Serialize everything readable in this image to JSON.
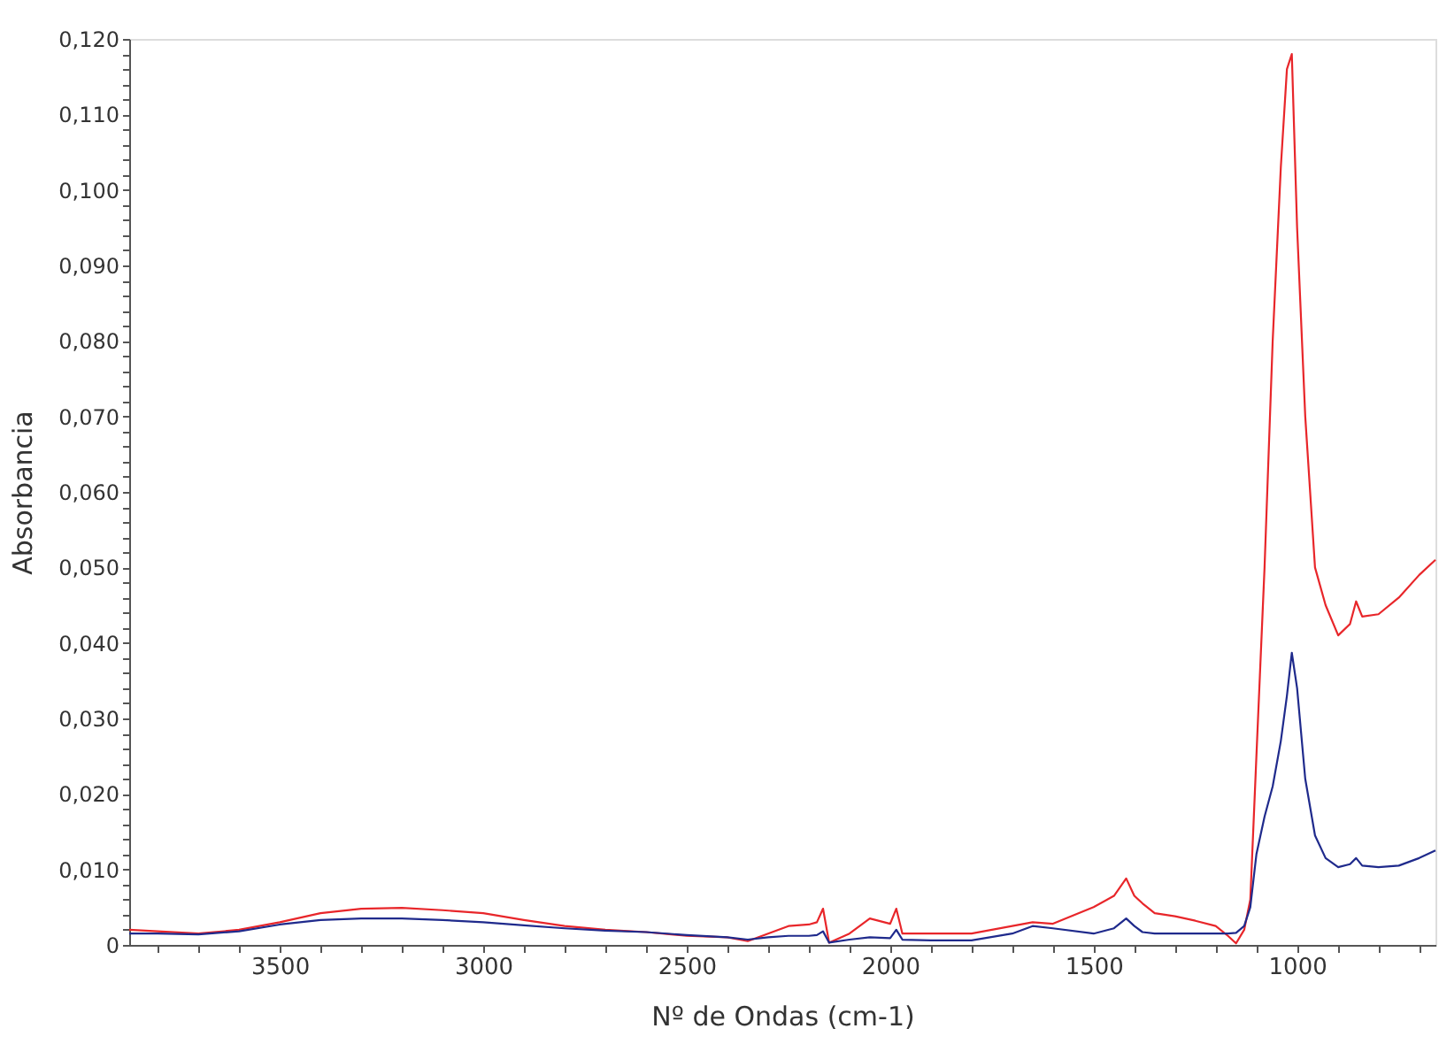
{
  "chart_data": {
    "type": "line",
    "xlabel": "Nº de Ondas (cm-1)",
    "ylabel": "Absorbancia",
    "xlim": [
      3870,
      660
    ],
    "ylim": [
      0,
      0.12
    ],
    "xticks": [
      {
        "value": 3800,
        "label": null
      },
      {
        "value": 3700,
        "label": null
      },
      {
        "value": 3600,
        "label": null
      },
      3500,
      {
        "value": 3400,
        "label": null
      },
      {
        "value": 3300,
        "label": null
      },
      {
        "value": 3200,
        "label": null
      },
      {
        "value": 3100,
        "label": null
      },
      3000,
      {
        "value": 2900,
        "label": null
      },
      {
        "value": 2800,
        "label": null
      },
      {
        "value": 2700,
        "label": null
      },
      {
        "value": 2600,
        "label": null
      },
      2500,
      {
        "value": 2400,
        "label": null
      },
      {
        "value": 2300,
        "label": null
      },
      {
        "value": 2200,
        "label": null
      },
      {
        "value": 2100,
        "label": null
      },
      2000,
      {
        "value": 1900,
        "label": null
      },
      {
        "value": 1800,
        "label": null
      },
      {
        "value": 1700,
        "label": null
      },
      {
        "value": 1600,
        "label": null
      },
      1500,
      {
        "value": 1400,
        "label": null
      },
      {
        "value": 1300,
        "label": null
      },
      {
        "value": 1200,
        "label": null
      },
      {
        "value": 1100,
        "label": null
      },
      1000,
      {
        "value": 900,
        "label": null
      },
      {
        "value": 800,
        "label": null
      },
      {
        "value": 700,
        "label": null
      }
    ],
    "yticks": [
      0,
      {
        "value": 0.002,
        "label": null
      },
      {
        "value": 0.004,
        "label": null
      },
      {
        "value": 0.006,
        "label": null
      },
      {
        "value": 0.008,
        "label": null
      },
      {
        "value": 0.01,
        "label": "0,010"
      },
      {
        "value": 0.012,
        "label": null
      },
      {
        "value": 0.014,
        "label": null
      },
      {
        "value": 0.016,
        "label": null
      },
      {
        "value": 0.018,
        "label": null
      },
      {
        "value": 0.02,
        "label": "0,020"
      },
      {
        "value": 0.022,
        "label": null
      },
      {
        "value": 0.024,
        "label": null
      },
      {
        "value": 0.026,
        "label": null
      },
      {
        "value": 0.028,
        "label": null
      },
      {
        "value": 0.03,
        "label": "0,030"
      },
      {
        "value": 0.032,
        "label": null
      },
      {
        "value": 0.034,
        "label": null
      },
      {
        "value": 0.036,
        "label": null
      },
      {
        "value": 0.038,
        "label": null
      },
      {
        "value": 0.04,
        "label": "0,040"
      },
      {
        "value": 0.042,
        "label": null
      },
      {
        "value": 0.044,
        "label": null
      },
      {
        "value": 0.046,
        "label": null
      },
      {
        "value": 0.048,
        "label": null
      },
      {
        "value": 0.05,
        "label": "0,050"
      },
      {
        "value": 0.052,
        "label": null
      },
      {
        "value": 0.054,
        "label": null
      },
      {
        "value": 0.056,
        "label": null
      },
      {
        "value": 0.058,
        "label": null
      },
      {
        "value": 0.06,
        "label": "0,060"
      },
      {
        "value": 0.062,
        "label": null
      },
      {
        "value": 0.064,
        "label": null
      },
      {
        "value": 0.066,
        "label": null
      },
      {
        "value": 0.068,
        "label": null
      },
      {
        "value": 0.07,
        "label": "0,070"
      },
      {
        "value": 0.072,
        "label": null
      },
      {
        "value": 0.074,
        "label": null
      },
      {
        "value": 0.076,
        "label": null
      },
      {
        "value": 0.078,
        "label": null
      },
      {
        "value": 0.08,
        "label": "0,080"
      },
      {
        "value": 0.082,
        "label": null
      },
      {
        "value": 0.084,
        "label": null
      },
      {
        "value": 0.086,
        "label": null
      },
      {
        "value": 0.088,
        "label": null
      },
      {
        "value": 0.09,
        "label": "0,090"
      },
      {
        "value": 0.092,
        "label": null
      },
      {
        "value": 0.094,
        "label": null
      },
      {
        "value": 0.096,
        "label": null
      },
      {
        "value": 0.098,
        "label": null
      },
      {
        "value": 0.1,
        "label": "0,100"
      },
      {
        "value": 0.102,
        "label": null
      },
      {
        "value": 0.104,
        "label": null
      },
      {
        "value": 0.106,
        "label": null
      },
      {
        "value": 0.108,
        "label": null
      },
      {
        "value": 0.11,
        "label": "0,110"
      },
      {
        "value": 0.112,
        "label": null
      },
      {
        "value": 0.114,
        "label": null
      },
      {
        "value": 0.116,
        "label": null
      },
      {
        "value": 0.118,
        "label": null
      },
      {
        "value": 0.12,
        "label": "0,120"
      }
    ],
    "grid": false,
    "marker": "none",
    "line_style": "solid",
    "series": [
      {
        "color": "#e8262a",
        "x": [
          3870,
          3800,
          3700,
          3600,
          3500,
          3400,
          3300,
          3200,
          3100,
          3000,
          2900,
          2800,
          2700,
          2600,
          2500,
          2400,
          2350,
          2300,
          2250,
          2200,
          2180,
          2165,
          2150,
          2100,
          2050,
          2000,
          1985,
          1970,
          1900,
          1800,
          1700,
          1650,
          1600,
          1500,
          1450,
          1420,
          1400,
          1380,
          1350,
          1300,
          1250,
          1200,
          1170,
          1150,
          1130,
          1115,
          1100,
          1080,
          1060,
          1040,
          1025,
          1013,
          1000,
          980,
          956,
          930,
          899,
          870,
          855,
          840,
          800,
          750,
          700,
          660
        ],
        "values": [
          0.002,
          0.0018,
          0.0015,
          0.002,
          0.003,
          0.0042,
          0.0048,
          0.0049,
          0.0046,
          0.0042,
          0.0033,
          0.0025,
          0.002,
          0.0017,
          0.0012,
          0.001,
          0.0005,
          0.0015,
          0.0025,
          0.0027,
          0.003,
          0.0048,
          0.0003,
          0.0015,
          0.0035,
          0.0028,
          0.0048,
          0.0015,
          0.0015,
          0.0015,
          0.0025,
          0.003,
          0.0028,
          0.005,
          0.0065,
          0.0088,
          0.0065,
          0.0055,
          0.0042,
          0.0038,
          0.0032,
          0.0025,
          0.0012,
          0.0002,
          0.002,
          0.006,
          0.025,
          0.05,
          0.08,
          0.103,
          0.116,
          0.118,
          0.095,
          0.07,
          0.05,
          0.045,
          0.041,
          0.0425,
          0.0455,
          0.0435,
          0.0438,
          0.046,
          0.049,
          0.051
        ]
      },
      {
        "color": "#1f2a8c",
        "x": [
          3870,
          3800,
          3700,
          3600,
          3500,
          3400,
          3300,
          3200,
          3100,
          3000,
          2900,
          2800,
          2700,
          2600,
          2500,
          2400,
          2350,
          2300,
          2250,
          2200,
          2180,
          2165,
          2150,
          2100,
          2050,
          2000,
          1985,
          1970,
          1900,
          1800,
          1700,
          1650,
          1600,
          1500,
          1450,
          1420,
          1400,
          1380,
          1350,
          1300,
          1250,
          1200,
          1170,
          1150,
          1130,
          1115,
          1100,
          1080,
          1060,
          1040,
          1025,
          1013,
          1000,
          980,
          956,
          930,
          899,
          870,
          855,
          840,
          800,
          750,
          700,
          660
        ],
        "values": [
          0.0015,
          0.0015,
          0.0014,
          0.0018,
          0.0027,
          0.0033,
          0.0035,
          0.0035,
          0.0033,
          0.003,
          0.0026,
          0.0022,
          0.0019,
          0.0017,
          0.0013,
          0.001,
          0.0007,
          0.001,
          0.0012,
          0.0012,
          0.0013,
          0.0018,
          0.0003,
          0.0007,
          0.001,
          0.0009,
          0.002,
          0.0007,
          0.0006,
          0.0006,
          0.0015,
          0.0025,
          0.0022,
          0.0015,
          0.0022,
          0.0035,
          0.0025,
          0.0017,
          0.0015,
          0.0015,
          0.0015,
          0.0015,
          0.0015,
          0.0016,
          0.0025,
          0.005,
          0.012,
          0.017,
          0.021,
          0.027,
          0.033,
          0.0387,
          0.034,
          0.022,
          0.0145,
          0.0115,
          0.0103,
          0.0107,
          0.0115,
          0.0105,
          0.0103,
          0.0105,
          0.0115,
          0.0125
        ]
      }
    ]
  }
}
